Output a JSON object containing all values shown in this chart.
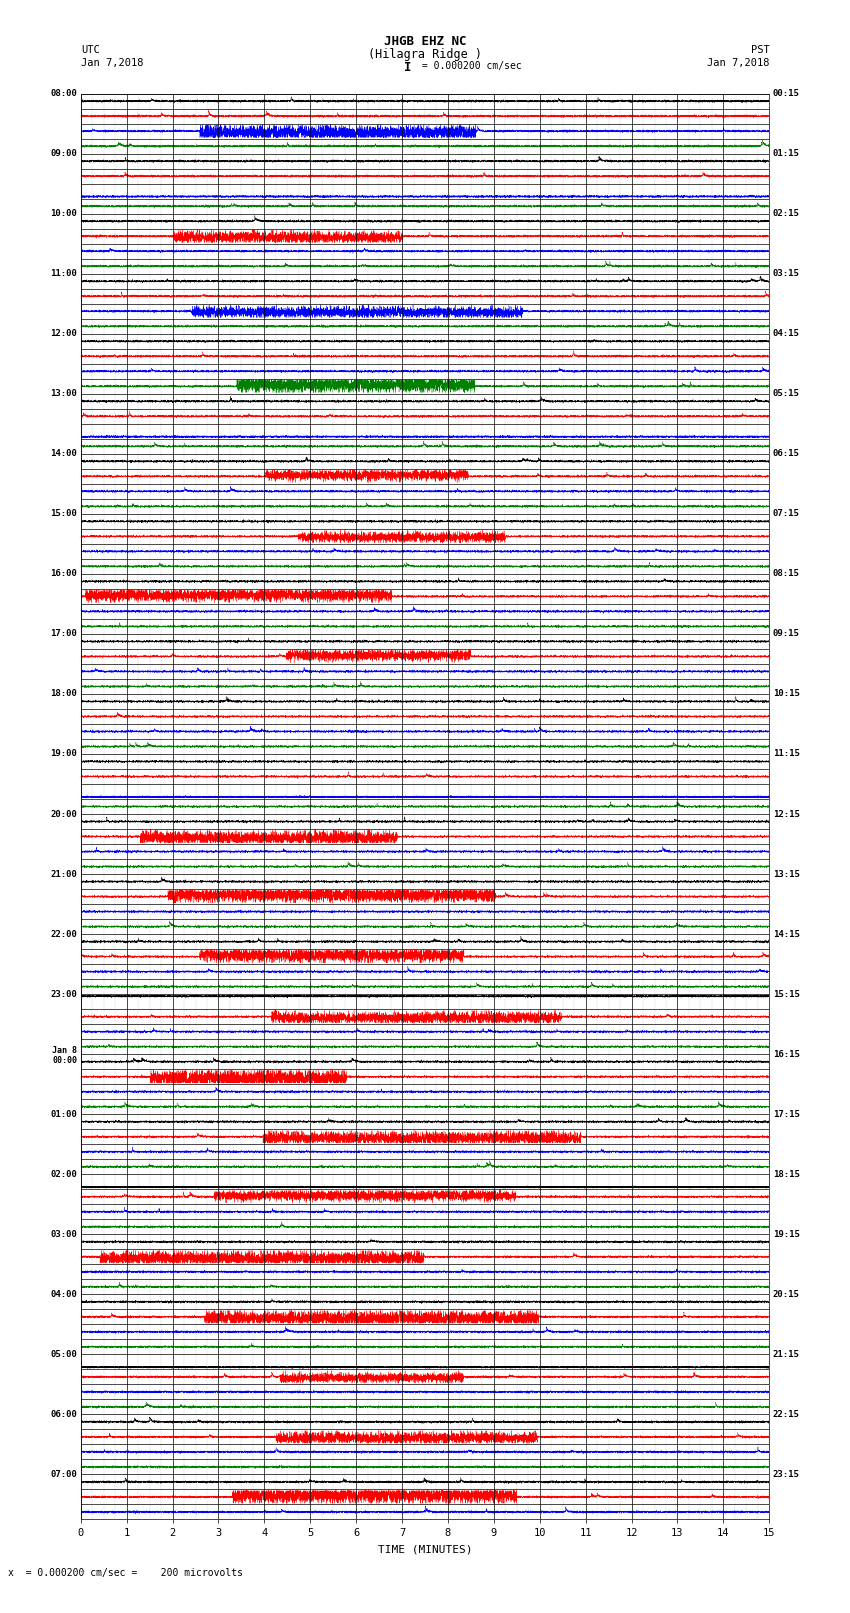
{
  "title_line1": "JHGB EHZ NC",
  "title_line2": "(Hilagra Ridge )",
  "scale_label": "I = 0.000200 cm/sec",
  "left_label_top": "UTC",
  "left_label_date": "Jan 7,2018",
  "right_label_top": "PST",
  "right_label_date": "Jan 7,2018",
  "xlabel": "TIME (MINUTES)",
  "footer_text": "x  = 0.000200 cm/sec =    200 microvolts",
  "utc_times": [
    "08:00",
    "",
    "",
    "",
    "09:00",
    "",
    "",
    "",
    "10:00",
    "",
    "",
    "",
    "11:00",
    "",
    "",
    "",
    "12:00",
    "",
    "",
    "",
    "13:00",
    "",
    "",
    "",
    "14:00",
    "",
    "",
    "",
    "15:00",
    "",
    "",
    "",
    "16:00",
    "",
    "",
    "",
    "17:00",
    "",
    "",
    "",
    "18:00",
    "",
    "",
    "",
    "19:00",
    "",
    "",
    "",
    "20:00",
    "",
    "",
    "",
    "21:00",
    "",
    "",
    "",
    "22:00",
    "",
    "",
    "",
    "23:00",
    "",
    "",
    "",
    "Jan 8\n00:00",
    "",
    "",
    "",
    "01:00",
    "",
    "",
    "",
    "02:00",
    "",
    "",
    "",
    "03:00",
    "",
    "",
    "",
    "04:00",
    "",
    "",
    "",
    "05:00",
    "",
    "",
    "",
    "06:00",
    "",
    "",
    "",
    "07:00",
    "",
    ""
  ],
  "pst_times": [
    "00:15",
    "",
    "",
    "",
    "01:15",
    "",
    "",
    "",
    "02:15",
    "",
    "",
    "",
    "03:15",
    "",
    "",
    "",
    "04:15",
    "",
    "",
    "",
    "05:15",
    "",
    "",
    "",
    "06:15",
    "",
    "",
    "",
    "07:15",
    "",
    "",
    "",
    "08:15",
    "",
    "",
    "",
    "09:15",
    "",
    "",
    "",
    "10:15",
    "",
    "",
    "",
    "11:15",
    "",
    "",
    "",
    "12:15",
    "",
    "",
    "",
    "13:15",
    "",
    "",
    "",
    "14:15",
    "",
    "",
    "",
    "15:15",
    "",
    "",
    "",
    "16:15",
    "",
    "",
    "",
    "17:15",
    "",
    "",
    "",
    "18:15",
    "",
    "",
    "",
    "19:15",
    "",
    "",
    "",
    "20:15",
    "",
    "",
    "",
    "21:15",
    "",
    "",
    "",
    "22:15",
    "",
    "",
    "",
    "23:15",
    "",
    ""
  ],
  "num_rows": 95,
  "x_min": 0,
  "x_max": 15,
  "bg_color": "#ffffff",
  "trace_colors_cycle": [
    "#000000",
    "#ff0000",
    "#0000ff",
    "#008000"
  ],
  "fig_width": 8.5,
  "fig_height": 16.13,
  "large_signal_rows": [
    2,
    9,
    14,
    19,
    25,
    29,
    33,
    37,
    49,
    53,
    57,
    61,
    65,
    69,
    73,
    77,
    81,
    85,
    89,
    93
  ],
  "huge_signal_rows": [
    6,
    22,
    46,
    60,
    72,
    84
  ]
}
